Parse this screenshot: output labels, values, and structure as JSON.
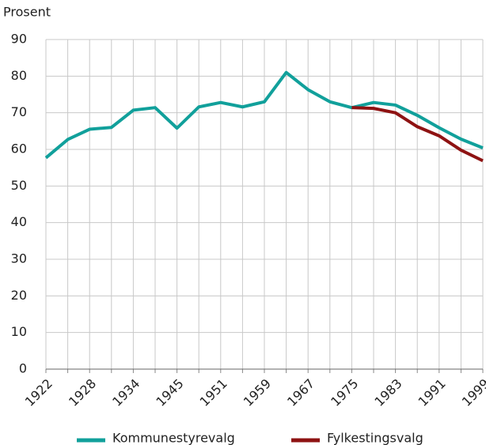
{
  "chart_data": {
    "type": "line",
    "y_label": "Prosent",
    "categories": [
      "1922",
      null,
      "1928",
      null,
      "1934",
      null,
      "1945",
      null,
      "1951",
      null,
      "1959",
      null,
      "1967",
      null,
      "1975",
      null,
      "1983",
      null,
      "1991",
      null,
      "1999"
    ],
    "series": [
      {
        "name": "Kommunestyrevalg",
        "color": "#11a09b",
        "values": [
          57.7,
          62.7,
          65.5,
          66.0,
          70.7,
          71.4,
          65.8,
          71.6,
          72.8,
          71.6,
          73.0,
          81.0,
          76.3,
          73.0,
          71.4,
          72.8,
          72.1,
          69.3,
          65.9,
          62.8,
          60.4
        ]
      },
      {
        "name": "Fylkestingsvalg",
        "color": "#8e1212",
        "values": [
          null,
          null,
          null,
          null,
          null,
          null,
          null,
          null,
          null,
          null,
          null,
          null,
          null,
          null,
          71.4,
          71.2,
          70.0,
          66.2,
          63.7,
          59.8,
          56.9
        ]
      }
    ],
    "ylim": [
      0,
      90
    ],
    "yticks": [
      0,
      10,
      20,
      30,
      40,
      50,
      60,
      70,
      80,
      90
    ],
    "grid": true
  }
}
